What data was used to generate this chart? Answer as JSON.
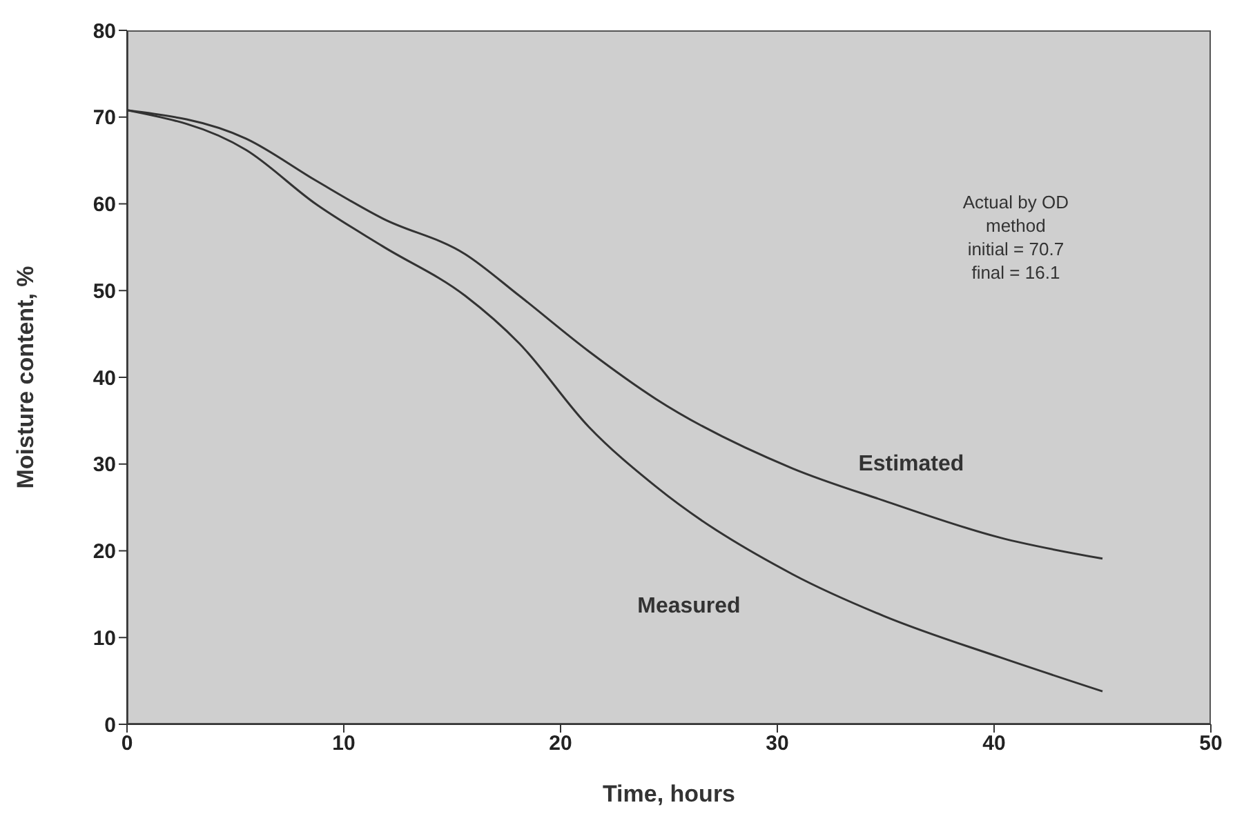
{
  "chart_data": {
    "type": "line",
    "xlabel": "Time, hours",
    "ylabel": "Moisture content, %",
    "x": [
      0,
      5.5,
      8.7,
      11.8,
      15.6,
      18.1,
      21.3,
      24.4,
      30.7,
      34.9,
      40.3,
      45
    ],
    "series": [
      {
        "name": "Estimated",
        "color": "#333333",
        "values": [
          70.8,
          67.5,
          62.7,
          58.3,
          54.2,
          49.4,
          43,
          37.5,
          29.5,
          25.8,
          21.5,
          19.1
        ]
      },
      {
        "name": "Measured",
        "color": "#333333",
        "values": [
          70.8,
          66.2,
          60,
          55.1,
          49.4,
          43.9,
          34.3,
          27.4,
          17.3,
          12.5,
          7.7,
          3.8
        ]
      }
    ],
    "xlim": [
      0,
      50
    ],
    "xticks": [
      0,
      10,
      20,
      30,
      40,
      50
    ],
    "ylim": [
      0,
      80
    ],
    "yticks": [
      0,
      10,
      20,
      30,
      40,
      50,
      60,
      70,
      80
    ],
    "grid": false,
    "legend": false,
    "marker": "none",
    "line_style": "solid",
    "annotations": [
      "Actual  by OD\nmethod\ninitial = 70.7\nfinal = 16.1"
    ]
  }
}
